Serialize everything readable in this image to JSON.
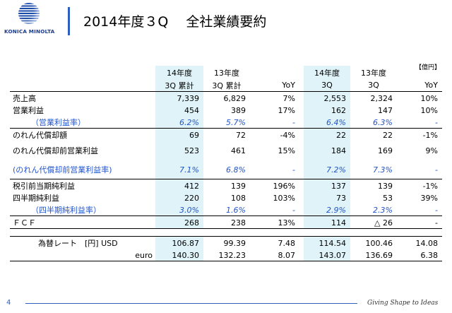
{
  "header": {
    "logo_text": "KONICA MINOLTA",
    "title": "2014年度３Q　 全社業績要約"
  },
  "table": {
    "unit": "【億円】",
    "headers": {
      "col1": [
        "14年度",
        "3Q 累計"
      ],
      "col2": [
        "13年度",
        "3Q 累計"
      ],
      "col3": [
        "",
        "YoY"
      ],
      "col5": [
        "14年度",
        "3Q"
      ],
      "col6": [
        "13年度",
        "3Q"
      ],
      "col7": [
        "",
        "YoY"
      ]
    },
    "rows": [
      {
        "label": "売上高",
        "values": [
          "7,339",
          "6,829",
          "7%",
          "2,553",
          "2,324",
          "10%"
        ]
      },
      {
        "label": "営業利益",
        "values": [
          "454",
          "389",
          "17%",
          "162",
          "147",
          "10%"
        ]
      },
      {
        "label": "（営業利益率）",
        "values": [
          "6.2%",
          "5.7%",
          "-",
          "6.4%",
          "6.3%",
          "-"
        ]
      },
      {
        "label": "のれん代償却額",
        "values": [
          "69",
          "72",
          "-4%",
          "22",
          "22",
          "-1%"
        ]
      },
      {
        "label": "のれん代償却前営業利益",
        "values": [
          "523",
          "461",
          "15%",
          "184",
          "169",
          "9%"
        ]
      },
      {
        "label": "(のれん代償却前営業利益率)",
        "values": [
          "7.1%",
          "6.8%",
          "-",
          "7.2%",
          "7.3%",
          "-"
        ]
      },
      {
        "label": "税引前当期純利益",
        "values": [
          "412",
          "139",
          "196%",
          "137",
          "139",
          "-1%"
        ]
      },
      {
        "label": "四半期純利益",
        "values": [
          "220",
          "108",
          "103%",
          "73",
          "53",
          "39%"
        ]
      },
      {
        "label": "（四半期純利益率）",
        "values": [
          "3.0%",
          "1.6%",
          "-",
          "2.9%",
          "2.3%",
          "-"
        ]
      },
      {
        "label": "ＦＣＦ",
        "values": [
          "268",
          "238",
          "13%",
          "114",
          "△ 26",
          "-"
        ]
      }
    ],
    "fx": [
      {
        "label": "為替レート　[円]  USD",
        "values": [
          "106.87",
          "99.39",
          "7.48",
          "114.54",
          "100.46",
          "14.08"
        ]
      },
      {
        "label": "euro",
        "values": [
          "140.30",
          "132.23",
          "8.07",
          "143.07",
          "136.69",
          "6.38"
        ]
      }
    ]
  },
  "footer": {
    "page": "4",
    "tagline": "Giving Shape to Ideas"
  }
}
